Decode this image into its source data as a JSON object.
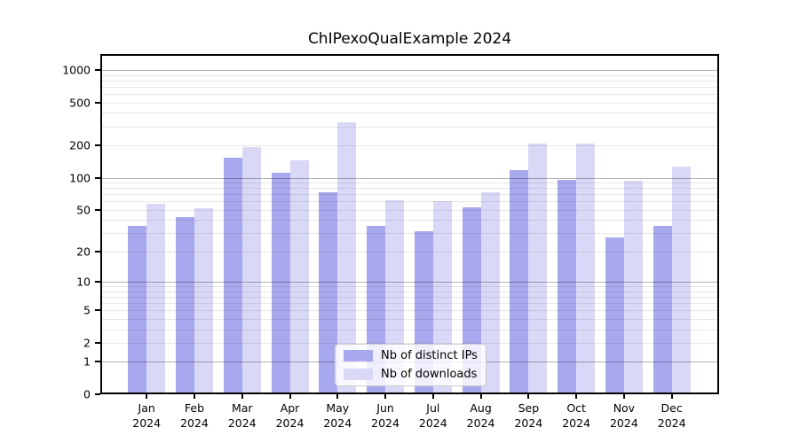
{
  "chart_data": {
    "type": "bar",
    "title": "ChIPexoQualExample 2024",
    "categories": [
      "Jan",
      "Feb",
      "Mar",
      "Apr",
      "May",
      "Jun",
      "Jul",
      "Aug",
      "Sep",
      "Oct",
      "Nov",
      "Dec"
    ],
    "category_year": "2024",
    "series": [
      {
        "name": "Nb of distinct IPs",
        "color": "#a8a8ee",
        "values": [
          35,
          43,
          153,
          111,
          73,
          35,
          31,
          53,
          117,
          95,
          27,
          35
        ]
      },
      {
        "name": "Nb of downloads",
        "color": "#d9d9f7",
        "values": [
          57,
          52,
          192,
          146,
          325,
          61,
          60,
          73,
          207,
          207,
          94,
          127
        ]
      }
    ],
    "yscale": "log1p",
    "yticks": [
      0,
      1,
      2,
      5,
      10,
      20,
      50,
      100,
      200,
      500,
      1000
    ],
    "ylim": [
      0,
      1400
    ],
    "xlabel": "",
    "ylabel": "",
    "grid": true,
    "legend_position": "lower center"
  }
}
